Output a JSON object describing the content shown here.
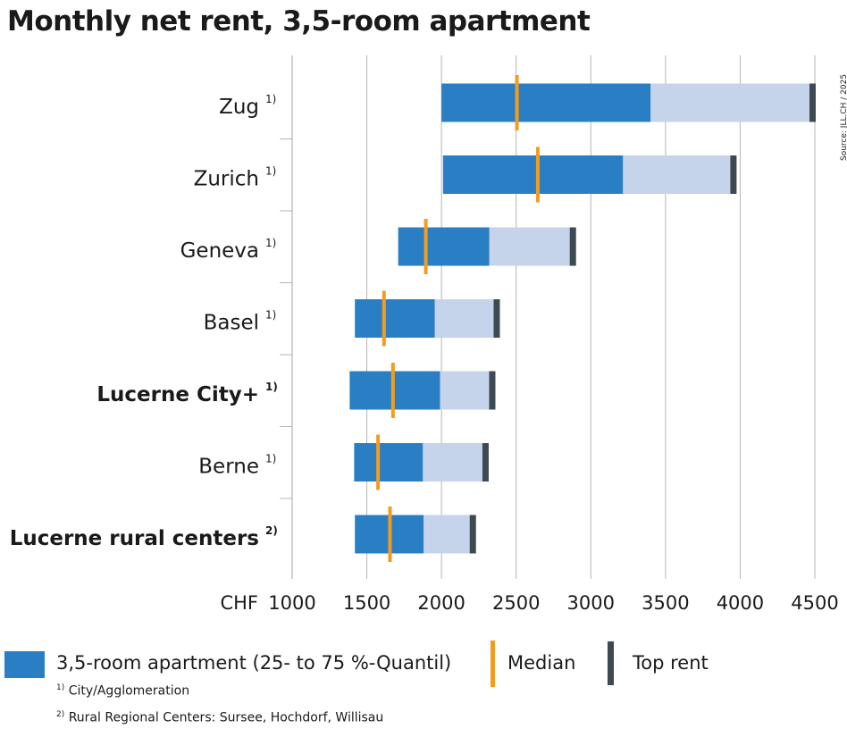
{
  "title": "Monthly net rent, 3,5-room apartment",
  "source": "Source: JLL.CH / 2025",
  "colors": {
    "iqr": "#2a7fc4",
    "upper": "#c5d4ea",
    "median": "#f39c1e",
    "top": "#3d4a52",
    "grid": "#b5b5b5"
  },
  "chart_data": {
    "type": "bar",
    "orientation": "horizontal",
    "title": "Monthly net rent, 3,5-room apartment",
    "xlabel": "CHF",
    "xlim": [
      1000,
      4500
    ],
    "xticks": [
      "1000",
      "1500",
      "2000",
      "2500",
      "3000",
      "3500",
      "4000",
      "4500"
    ],
    "grid": true,
    "categories": [
      {
        "label": "Zug",
        "sup": "1)",
        "bold": false
      },
      {
        "label": "Zurich",
        "sup": "1)",
        "bold": false
      },
      {
        "label": "Geneva",
        "sup": "1)",
        "bold": false
      },
      {
        "label": "Basel",
        "sup": "1)",
        "bold": false
      },
      {
        "label": "Lucerne City+",
        "sup": "1)",
        "bold": true
      },
      {
        "label": "Berne",
        "sup": "1)",
        "bold": false
      },
      {
        "label": "Lucerne rural centers",
        "sup": "2)",
        "bold": true
      }
    ],
    "series": [
      {
        "name": "3,5-room apartment (25- to 75 %-Quantil)",
        "q25": [
          2000,
          2010,
          1710,
          1420,
          1385,
          1415,
          1420
        ],
        "q75": [
          3400,
          3215,
          2320,
          1955,
          1990,
          1875,
          1880
        ]
      },
      {
        "name": "Median",
        "values": [
          2505,
          2645,
          1895,
          1615,
          1675,
          1575,
          1655
        ]
      },
      {
        "name": "Top rent",
        "values": [
          4485,
          3955,
          2880,
          2370,
          2340,
          2295,
          2210
        ]
      }
    ]
  },
  "legend": {
    "iqr_label": "3,5-room apartment (25- to 75 %-Quantil)",
    "median_label": "Median",
    "top_label": "Top rent"
  },
  "notes": {
    "note1_mark": "1)",
    "note1_text": "City/Agglomeration",
    "note2_mark": "2)",
    "note2_text": "Rural Regional Centers: Sursee, Hochdorf, Willisau"
  }
}
